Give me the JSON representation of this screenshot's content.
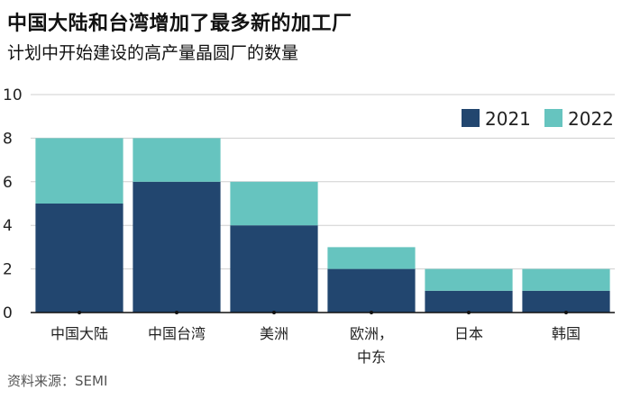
{
  "chart_data": {
    "type": "bar",
    "stacked": true,
    "title": "中国大陆和台湾增加了最多新的加工厂",
    "subtitle": "计划中开始建设的高产量晶圆厂的数量",
    "categories": [
      "中国大陆",
      "中国台湾",
      "美洲",
      "欧洲，\n中东",
      "日本",
      "韩国"
    ],
    "series": [
      {
        "name": "2021",
        "color": "#22466f",
        "values": [
          5,
          6,
          4,
          2,
          1,
          1
        ]
      },
      {
        "name": "2022",
        "color": "#66c4bf",
        "values": [
          3,
          2,
          2,
          1,
          1,
          1
        ]
      }
    ],
    "yticks": [
      0,
      2,
      4,
      6,
      8,
      10
    ],
    "ylim": [
      0,
      10
    ],
    "grid": true,
    "legend_position": "top-right",
    "source": "资料来源：SEMI"
  }
}
